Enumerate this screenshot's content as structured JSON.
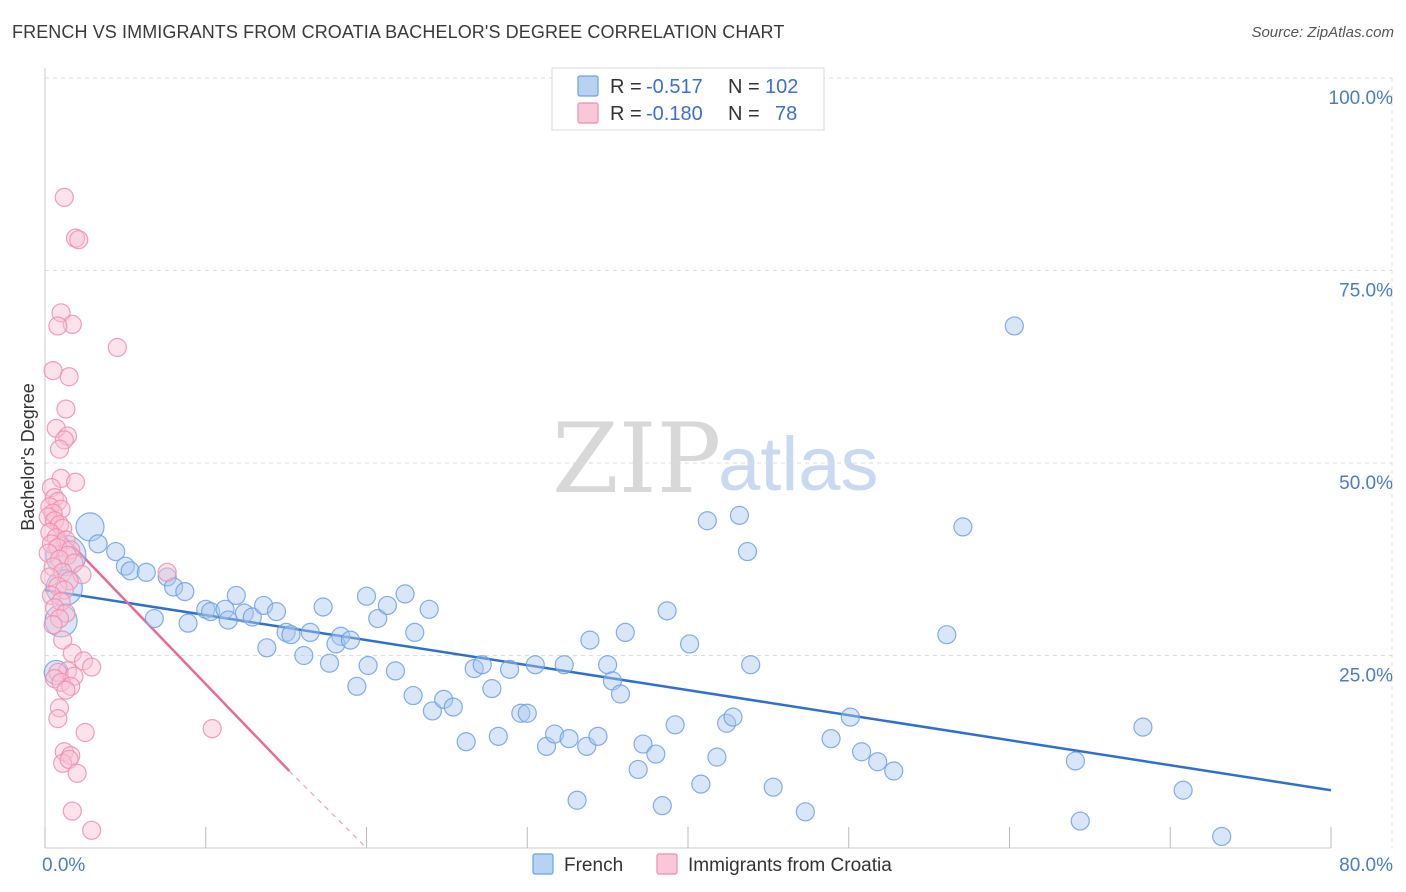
{
  "title": "FRENCH VS IMMIGRANTS FROM CROATIA BACHELOR'S DEGREE CORRELATION CHART",
  "source": "Source: ZipAtlas.com",
  "watermark": {
    "zip": "ZIP",
    "atlas": "atlas"
  },
  "chart_data": {
    "type": "scatter",
    "ylabel": "Bachelor's Degree",
    "xlim": [
      0,
      80
    ],
    "ylim": [
      0,
      100
    ],
    "x_tick_labels": [
      {
        "value": 0,
        "label": "0.0%"
      },
      {
        "value": 80,
        "label": "80.0%"
      }
    ],
    "y_tick_labels": [
      {
        "value": 100,
        "label": "100.0%"
      },
      {
        "value": 75,
        "label": "75.0%"
      },
      {
        "value": 50,
        "label": "50.0%"
      },
      {
        "value": 25,
        "label": "25.0%"
      }
    ],
    "legend": [
      {
        "r_label": "R =",
        "r_value": "-0.517",
        "n_label": "N =",
        "n_value": "102",
        "color": "#6fa0e0"
      },
      {
        "r_label": "R =",
        "r_value": "-0.180",
        "n_label": "N =",
        "n_value": "78",
        "color": "#f08cb0"
      }
    ],
    "series": [
      {
        "name": "French",
        "color": "#6fa0e0",
        "fill": "#a8c8f0",
        "trend": {
          "x0": 0,
          "y0": 33.5,
          "x1": 80,
          "y1": 7.5
        },
        "points": [
          [
            2.8,
            41.7,
            14
          ],
          [
            1.3,
            38.0,
            20
          ],
          [
            3.3,
            39.5,
            9
          ],
          [
            1.2,
            33.8,
            18
          ],
          [
            1.0,
            29.5,
            16
          ],
          [
            0.7,
            22.8,
            12
          ],
          [
            4.4,
            38.5,
            9
          ],
          [
            5.0,
            36.6,
            9
          ],
          [
            5.3,
            36.0,
            9
          ],
          [
            6.3,
            35.8,
            9
          ],
          [
            7.6,
            35.2,
            9
          ],
          [
            8.0,
            33.9,
            9
          ],
          [
            8.7,
            33.3,
            9
          ],
          [
            6.8,
            29.8,
            9
          ],
          [
            8.9,
            29.2,
            9
          ],
          [
            10.0,
            31.0,
            9
          ],
          [
            10.3,
            30.7,
            9
          ],
          [
            11.2,
            31.0,
            9
          ],
          [
            11.4,
            29.6,
            9
          ],
          [
            11.9,
            32.8,
            9
          ],
          [
            12.4,
            30.5,
            9
          ],
          [
            12.9,
            30.0,
            9
          ],
          [
            13.6,
            31.5,
            9
          ],
          [
            14.4,
            30.7,
            9
          ],
          [
            13.8,
            26.0,
            9
          ],
          [
            15.0,
            28.0,
            9
          ],
          [
            15.3,
            27.7,
            9
          ],
          [
            16.5,
            28.0,
            9
          ],
          [
            16.1,
            25.0,
            9
          ],
          [
            17.3,
            31.3,
            9
          ],
          [
            18.4,
            27.5,
            9
          ],
          [
            17.7,
            24.0,
            9
          ],
          [
            18.1,
            26.5,
            9
          ],
          [
            19.0,
            27.0,
            9
          ],
          [
            20.0,
            32.7,
            9
          ],
          [
            19.4,
            21.0,
            9
          ],
          [
            20.7,
            29.8,
            9
          ],
          [
            21.3,
            31.5,
            9
          ],
          [
            22.4,
            33.0,
            9
          ],
          [
            23.9,
            31.0,
            9
          ],
          [
            20.1,
            23.7,
            9
          ],
          [
            21.8,
            23.0,
            9
          ],
          [
            23.0,
            28.0,
            9
          ],
          [
            22.9,
            19.8,
            9
          ],
          [
            24.1,
            17.8,
            9
          ],
          [
            24.8,
            19.3,
            9
          ],
          [
            25.4,
            18.3,
            9
          ],
          [
            26.2,
            13.8,
            9
          ],
          [
            26.7,
            23.3,
            9
          ],
          [
            27.2,
            23.8,
            9
          ],
          [
            27.8,
            20.7,
            9
          ],
          [
            28.2,
            14.5,
            9
          ],
          [
            28.9,
            23.2,
            9
          ],
          [
            29.6,
            17.5,
            9
          ],
          [
            30.0,
            17.5,
            9
          ],
          [
            30.5,
            23.8,
            9
          ],
          [
            31.2,
            13.2,
            9
          ],
          [
            31.7,
            14.8,
            9
          ],
          [
            32.3,
            23.8,
            9
          ],
          [
            32.6,
            14.2,
            9
          ],
          [
            33.7,
            13.2,
            9
          ],
          [
            34.4,
            14.5,
            9
          ],
          [
            33.1,
            6.2,
            9
          ],
          [
            33.9,
            27.0,
            9
          ],
          [
            35.0,
            23.8,
            9
          ],
          [
            35.3,
            21.7,
            9
          ],
          [
            35.8,
            20.0,
            9
          ],
          [
            36.1,
            28.0,
            9
          ],
          [
            36.9,
            10.2,
            9
          ],
          [
            37.2,
            13.5,
            9
          ],
          [
            38.0,
            12.2,
            9
          ],
          [
            38.4,
            5.5,
            9
          ],
          [
            38.7,
            30.8,
            9
          ],
          [
            39.2,
            16.0,
            9
          ],
          [
            40.1,
            26.5,
            9
          ],
          [
            40.8,
            8.3,
            9
          ],
          [
            41.2,
            42.5,
            9
          ],
          [
            41.8,
            11.8,
            9
          ],
          [
            42.4,
            16.2,
            9
          ],
          [
            42.8,
            17.0,
            9
          ],
          [
            43.2,
            43.2,
            9
          ],
          [
            43.7,
            38.5,
            9
          ],
          [
            43.9,
            23.8,
            9
          ],
          [
            45.3,
            7.9,
            9
          ],
          [
            47.3,
            4.7,
            9
          ],
          [
            48.9,
            14.2,
            9
          ],
          [
            50.1,
            17.0,
            9
          ],
          [
            50.8,
            12.5,
            9
          ],
          [
            51.8,
            11.2,
            9
          ],
          [
            52.8,
            10.0,
            9
          ],
          [
            56.1,
            27.7,
            9
          ],
          [
            57.1,
            41.7,
            9
          ],
          [
            60.3,
            67.8,
            9
          ],
          [
            64.4,
            3.5,
            9
          ],
          [
            64.1,
            11.3,
            9
          ],
          [
            68.3,
            15.7,
            9
          ],
          [
            70.8,
            7.5,
            9
          ],
          [
            73.2,
            1.5,
            9
          ]
        ]
      },
      {
        "name": "Immigrants from Croatia",
        "color": "#f08cb0",
        "fill": "#f8c0d2",
        "trend": {
          "x0": 0,
          "y0": 43.0,
          "x1": 15.2,
          "y1": 10.0
        },
        "trend_dashed": {
          "x0": 15.2,
          "y0": 10.0,
          "x1": 20.0,
          "y1": 0.0
        },
        "points": [
          [
            1.2,
            84.5,
            9
          ],
          [
            1.9,
            79.2,
            9
          ],
          [
            2.1,
            79.0,
            9
          ],
          [
            1.0,
            69.5,
            9
          ],
          [
            1.7,
            68.0,
            9
          ],
          [
            0.8,
            67.8,
            9
          ],
          [
            4.5,
            65.0,
            9
          ],
          [
            0.5,
            62.0,
            9
          ],
          [
            1.5,
            61.2,
            9
          ],
          [
            1.3,
            57.0,
            9
          ],
          [
            0.7,
            54.5,
            9
          ],
          [
            1.4,
            53.5,
            9
          ],
          [
            1.2,
            53.0,
            9
          ],
          [
            0.9,
            51.8,
            9
          ],
          [
            1.0,
            48.0,
            9
          ],
          [
            1.9,
            47.5,
            9
          ],
          [
            0.4,
            46.8,
            9
          ],
          [
            0.6,
            45.5,
            9
          ],
          [
            0.8,
            45.0,
            9
          ],
          [
            0.3,
            44.3,
            9
          ],
          [
            1.0,
            44.0,
            9
          ],
          [
            0.5,
            43.5,
            9
          ],
          [
            0.2,
            43.0,
            9
          ],
          [
            0.6,
            42.5,
            9
          ],
          [
            0.9,
            42.0,
            9
          ],
          [
            1.1,
            41.5,
            9
          ],
          [
            0.3,
            41.0,
            9
          ],
          [
            0.7,
            40.3,
            9
          ],
          [
            1.3,
            40.0,
            9
          ],
          [
            0.4,
            39.5,
            9
          ],
          [
            0.8,
            39.0,
            9
          ],
          [
            1.6,
            38.7,
            9
          ],
          [
            0.2,
            38.3,
            9
          ],
          [
            1.4,
            38.0,
            9
          ],
          [
            0.9,
            37.5,
            9
          ],
          [
            1.8,
            37.0,
            9
          ],
          [
            0.5,
            36.5,
            9
          ],
          [
            1.1,
            35.8,
            9
          ],
          [
            0.3,
            35.2,
            9
          ],
          [
            2.3,
            35.5,
            9
          ],
          [
            7.6,
            35.8,
            9
          ],
          [
            1.5,
            34.7,
            9
          ],
          [
            0.8,
            34.0,
            9
          ],
          [
            1.2,
            33.5,
            9
          ],
          [
            0.4,
            32.8,
            9
          ],
          [
            1.0,
            32.0,
            9
          ],
          [
            0.6,
            31.2,
            9
          ],
          [
            1.3,
            30.5,
            9
          ],
          [
            0.9,
            29.8,
            9
          ],
          [
            0.5,
            29.0,
            9
          ],
          [
            1.1,
            27.0,
            9
          ],
          [
            1.7,
            25.3,
            9
          ],
          [
            2.4,
            24.3,
            9
          ],
          [
            2.9,
            23.5,
            9
          ],
          [
            1.4,
            23.0,
            9
          ],
          [
            0.8,
            22.8,
            9
          ],
          [
            1.8,
            22.3,
            9
          ],
          [
            0.6,
            22.0,
            9
          ],
          [
            1.0,
            21.5,
            9
          ],
          [
            1.6,
            21.0,
            9
          ],
          [
            1.3,
            20.5,
            9
          ],
          [
            0.9,
            18.2,
            9
          ],
          [
            0.8,
            16.8,
            9
          ],
          [
            2.5,
            15.0,
            9
          ],
          [
            10.4,
            15.5,
            9
          ],
          [
            1.2,
            12.5,
            9
          ],
          [
            1.6,
            12.0,
            9
          ],
          [
            1.1,
            11.0,
            9
          ],
          [
            1.5,
            11.5,
            9
          ],
          [
            2.0,
            9.7,
            9
          ],
          [
            1.7,
            4.8,
            9
          ],
          [
            2.9,
            2.3,
            9
          ]
        ]
      }
    ]
  }
}
